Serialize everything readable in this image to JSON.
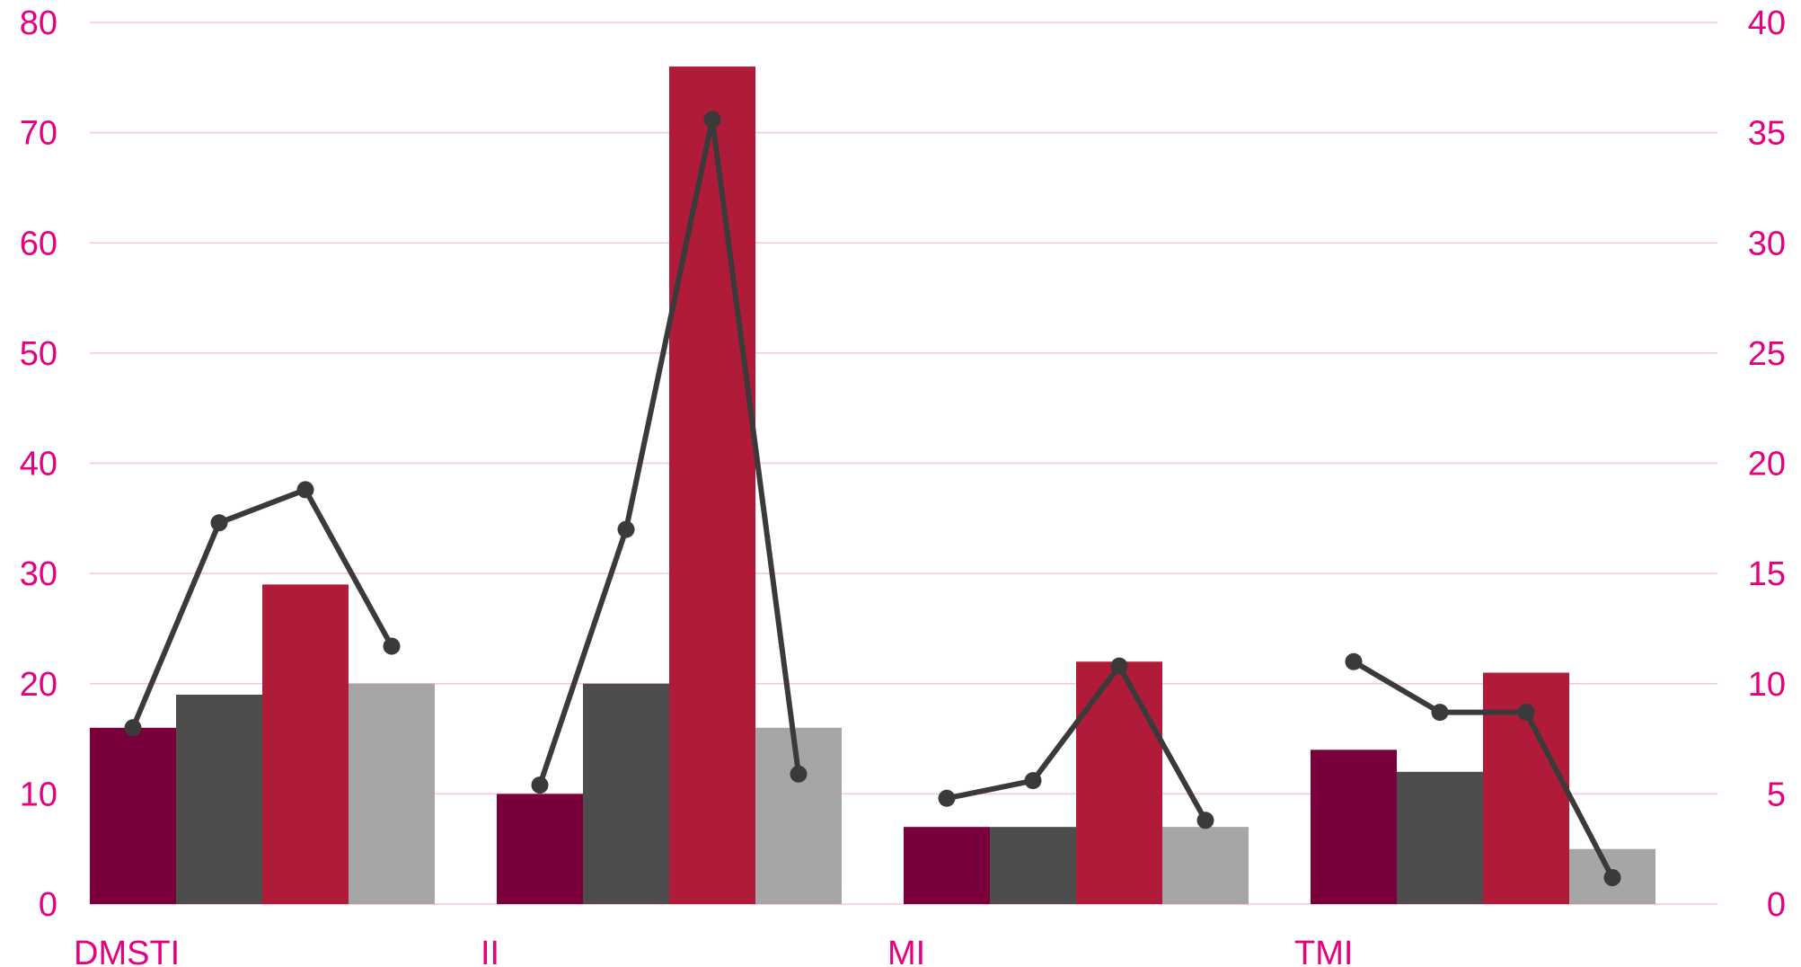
{
  "chart_data": {
    "type": "bar",
    "categories": [
      "DMSTI",
      "II",
      "MI",
      "TMI"
    ],
    "series": [
      {
        "values": [
          16,
          10,
          7,
          14
        ],
        "axis": "left",
        "color": "#7a003c"
      },
      {
        "values": [
          19,
          20,
          7,
          12
        ],
        "axis": "left",
        "color": "#4d4d4d"
      },
      {
        "values": [
          29,
          76,
          22,
          21
        ],
        "axis": "left",
        "color": "#b01b3a"
      },
      {
        "values": [
          20,
          16,
          7,
          5
        ],
        "axis": "left",
        "color": "#a6a6a6"
      },
      {
        "type": "line",
        "axis": "right",
        "color": "#3a3a3a",
        "values": [
          [
            8,
            17.3,
            18.8,
            11.7
          ],
          [
            5.4,
            17,
            35.6,
            5.9
          ],
          [
            4.8,
            5.6,
            10.8,
            3.8
          ],
          [
            11,
            8.7,
            8.7,
            1.2
          ]
        ]
      }
    ],
    "y_left": {
      "ylim": [
        0,
        80
      ],
      "ticks": [
        "0",
        "10",
        "20",
        "30",
        "40",
        "50",
        "60",
        "70",
        "80"
      ]
    },
    "y_right": {
      "ylim": [
        0,
        40
      ],
      "ticks": [
        "0",
        "5",
        "10",
        "15",
        "20",
        "25",
        "30",
        "35",
        "40"
      ]
    },
    "grid": true,
    "legend": "none",
    "colors": {
      "axis_text": "#e6007e",
      "gridline": "#f7c3df"
    }
  }
}
